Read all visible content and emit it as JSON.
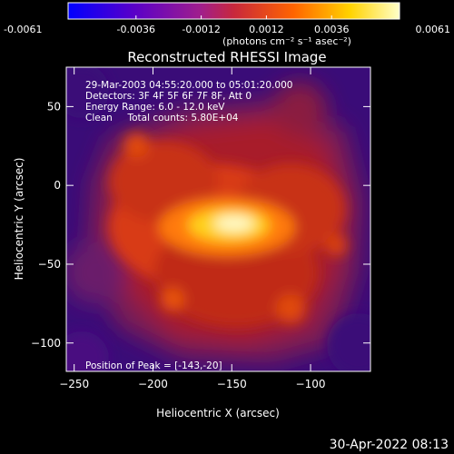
{
  "colorbar": {
    "tick_labels": [
      "-0.0061",
      "-0.0036",
      "-0.0012",
      "0.0012",
      "0.0036",
      "0.0061"
    ],
    "units": "(photons cm⁻² s⁻¹ asec⁻²)",
    "range": [
      -0.0061,
      0.0061
    ],
    "colors": [
      "#0000ff",
      "#5a00c8",
      "#a01e8c",
      "#c8283c",
      "#ff6400",
      "#ffd200",
      "#ffffc8"
    ]
  },
  "chart_data": {
    "type": "heatmap",
    "title": "Reconstructed RHESSI Image",
    "xlabel": "Heliocentric X (arcsec)",
    "ylabel": "Heliocentric Y (arcsec)",
    "xlim": [
      -255,
      -62
    ],
    "ylim": [
      -118,
      75
    ],
    "xticks": [
      -250,
      -200,
      -150,
      -100
    ],
    "yticks": [
      -100,
      -50,
      0,
      50
    ],
    "xtick_labels": [
      "−250",
      "−200",
      "−150",
      "−100"
    ],
    "ytick_labels": [
      "−100",
      "−50",
      "0",
      "50"
    ],
    "peak": {
      "x": -143,
      "y": -20
    },
    "annotations": [
      "29-Mar-2003 04:55:20.000 to 05:01:20.000",
      "Detectors: 3F 4F 5F 6F 7F 8F, Att 0",
      "Energy Range: 6.0 - 12.0 keV",
      "Clean     Total counts: 5.80E+04"
    ],
    "peak_label": "Position of Peak = [-143,-20]",
    "grid": false
  },
  "footer": {
    "date": "30-Apr-2022 08:13"
  }
}
